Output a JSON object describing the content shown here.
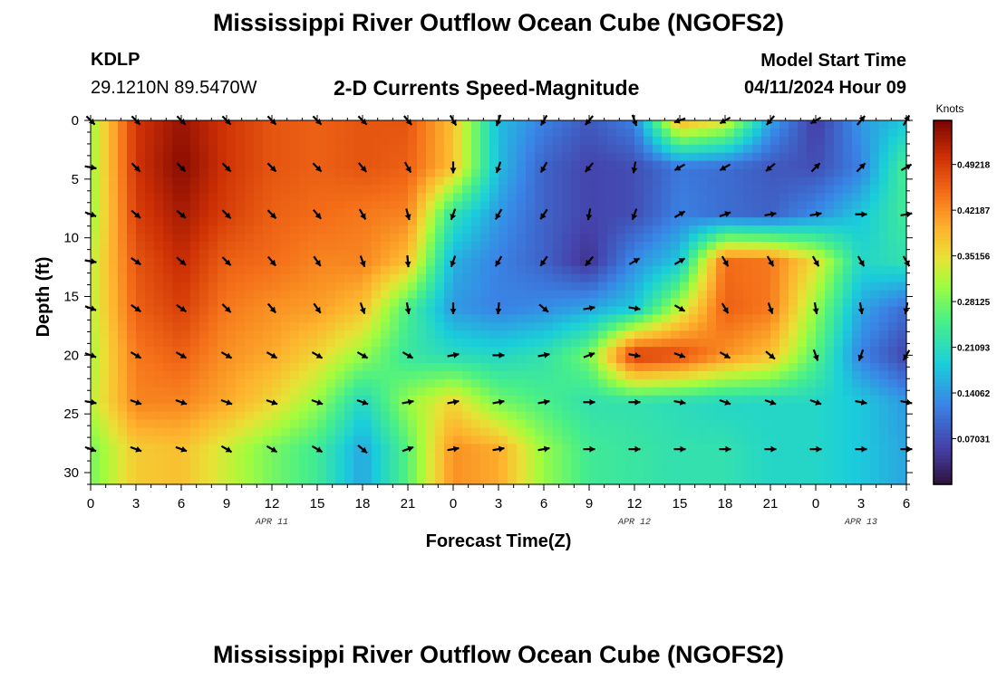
{
  "header": {
    "title": "Mississippi River Outflow Ocean Cube (NGOFS2)",
    "station_id": "KDLP",
    "station_coords": "29.1210N  89.5470W",
    "plot_title": "2-D Currents Speed-Magnitude",
    "model_start_label": "Model Start Time",
    "model_start_value": "04/11/2024 Hour 09"
  },
  "footer": {
    "title": "Mississippi River Outflow Ocean Cube (NGOFS2)"
  },
  "chart_data": {
    "type": "heatmap",
    "title": "2-D Currents Speed-Magnitude",
    "xlabel": "Forecast Time(Z)",
    "ylabel": "Depth (ft)",
    "x_tick_labels": [
      "0",
      "3",
      "6",
      "9",
      "12",
      "15",
      "18",
      "21",
      "0",
      "3",
      "6",
      "9",
      "12",
      "15",
      "18",
      "21",
      "0",
      "3",
      "6"
    ],
    "x_hours": [
      0,
      3,
      6,
      9,
      12,
      15,
      18,
      21,
      24,
      27,
      30,
      33,
      36,
      39,
      42,
      45,
      48,
      51,
      54
    ],
    "xlim": [
      0,
      54
    ],
    "date_labels": [
      {
        "label": "APR 11",
        "hour": 12
      },
      {
        "label": "APR 12",
        "hour": 36
      },
      {
        "label": "APR 13",
        "hour": 51
      }
    ],
    "y_ticks": [
      0,
      5,
      10,
      15,
      20,
      25,
      30
    ],
    "ylim": [
      0,
      31
    ],
    "y_inverted": true,
    "colorbar": {
      "label": "Knots",
      "min": 0,
      "max": 0.56,
      "tick_labels": [
        "0.49218",
        "0.42187",
        "0.35156",
        "0.28125",
        "0.21093",
        "0.14062",
        "0.07031"
      ],
      "tick_values": [
        0.49218,
        0.42187,
        0.35156,
        0.28125,
        0.21093,
        0.14062,
        0.07031
      ]
    },
    "depths": [
      0,
      4,
      8,
      12,
      16,
      20,
      24,
      28
    ],
    "times": [
      0,
      3,
      6,
      9,
      12,
      15,
      18,
      21,
      24,
      27,
      30,
      33,
      36,
      39,
      42,
      45,
      48,
      51,
      54
    ],
    "speed": [
      [
        0.3,
        0.5,
        0.54,
        0.5,
        0.47,
        0.46,
        0.47,
        0.47,
        0.38,
        0.17,
        0.12,
        0.08,
        0.12,
        0.4,
        0.35,
        0.15,
        0.05,
        0.14,
        0.18
      ],
      [
        0.3,
        0.5,
        0.55,
        0.5,
        0.47,
        0.46,
        0.47,
        0.46,
        0.38,
        0.17,
        0.09,
        0.06,
        0.07,
        0.11,
        0.1,
        0.08,
        0.07,
        0.12,
        0.25
      ],
      [
        0.3,
        0.49,
        0.53,
        0.49,
        0.46,
        0.45,
        0.44,
        0.43,
        0.22,
        0.14,
        0.09,
        0.06,
        0.07,
        0.12,
        0.1,
        0.09,
        0.13,
        0.18,
        0.24
      ],
      [
        0.32,
        0.47,
        0.51,
        0.46,
        0.45,
        0.43,
        0.43,
        0.38,
        0.16,
        0.12,
        0.09,
        0.04,
        0.13,
        0.18,
        0.45,
        0.44,
        0.35,
        0.2,
        0.22
      ],
      [
        0.32,
        0.46,
        0.49,
        0.44,
        0.42,
        0.41,
        0.38,
        0.25,
        0.14,
        0.12,
        0.13,
        0.15,
        0.18,
        0.32,
        0.46,
        0.44,
        0.3,
        0.15,
        0.1
      ],
      [
        0.31,
        0.44,
        0.46,
        0.42,
        0.4,
        0.36,
        0.3,
        0.23,
        0.21,
        0.2,
        0.22,
        0.28,
        0.5,
        0.48,
        0.42,
        0.38,
        0.26,
        0.12,
        0.06
      ],
      [
        0.32,
        0.43,
        0.43,
        0.4,
        0.36,
        0.3,
        0.2,
        0.3,
        0.36,
        0.28,
        0.25,
        0.22,
        0.22,
        0.21,
        0.2,
        0.2,
        0.2,
        0.18,
        0.14
      ],
      [
        0.28,
        0.37,
        0.38,
        0.33,
        0.28,
        0.24,
        0.15,
        0.26,
        0.42,
        0.4,
        0.3,
        0.24,
        0.23,
        0.22,
        0.22,
        0.2,
        0.2,
        0.18,
        0.15
      ]
    ],
    "direction_deg": [
      [
        135,
        135,
        135,
        135,
        135,
        135,
        135,
        140,
        150,
        200,
        210,
        220,
        160,
        250,
        240,
        220,
        240,
        40,
        30
      ],
      [
        100,
        135,
        135,
        135,
        135,
        135,
        140,
        150,
        180,
        200,
        210,
        220,
        190,
        240,
        240,
        230,
        45,
        45,
        60
      ],
      [
        110,
        130,
        130,
        135,
        135,
        140,
        150,
        165,
        200,
        210,
        215,
        190,
        200,
        60,
        70,
        80,
        80,
        90,
        80
      ],
      [
        100,
        125,
        130,
        135,
        140,
        145,
        160,
        175,
        200,
        210,
        215,
        220,
        60,
        60,
        150,
        150,
        150,
        150,
        150
      ],
      [
        110,
        125,
        125,
        135,
        140,
        145,
        160,
        170,
        180,
        185,
        130,
        80,
        100,
        120,
        150,
        160,
        170,
        170,
        190
      ],
      [
        110,
        120,
        120,
        120,
        120,
        120,
        120,
        120,
        80,
        90,
        80,
        70,
        100,
        110,
        120,
        130,
        160,
        200,
        210
      ],
      [
        100,
        110,
        110,
        110,
        110,
        110,
        110,
        80,
        80,
        80,
        80,
        90,
        90,
        100,
        110,
        110,
        110,
        100,
        100
      ],
      [
        110,
        110,
        110,
        120,
        120,
        120,
        130,
        70,
        80,
        80,
        80,
        90,
        90,
        90,
        90,
        90,
        90,
        90,
        90
      ]
    ]
  }
}
